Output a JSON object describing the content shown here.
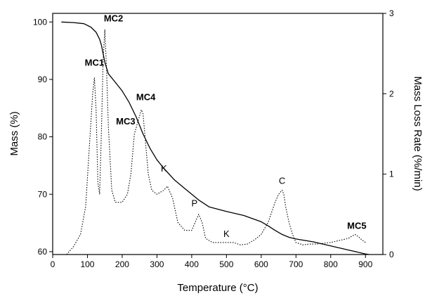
{
  "chart_data": {
    "type": "line",
    "xlabel": "Temperature (°C)",
    "ylabel": "Mass (%)",
    "y2label": "Mass Loss Rate (%/min)",
    "xlim": [
      0,
      950
    ],
    "ylim": [
      59.5,
      101.5
    ],
    "y2lim": [
      0,
      3
    ],
    "xticks": [
      0,
      100,
      200,
      300,
      400,
      500,
      600,
      700,
      800,
      900
    ],
    "yticks": [
      60,
      70,
      80,
      90,
      100
    ],
    "y2ticks": [
      0,
      1,
      2,
      3
    ],
    "grid": false,
    "series": [
      {
        "axis": "left",
        "style": "solid",
        "x": [
          25,
          60,
          90,
          110,
          125,
          135,
          140,
          150,
          160,
          180,
          200,
          220,
          240,
          260,
          280,
          300,
          320,
          350,
          380,
          400,
          420,
          450,
          500,
          550,
          600,
          620,
          640,
          660,
          680,
          700,
          750,
          800,
          850,
          900,
          910
        ],
        "y": [
          100,
          99.9,
          99.7,
          99.1,
          98.2,
          97,
          96,
          93,
          91,
          89.5,
          88,
          86,
          83.5,
          80.5,
          78,
          76,
          74.5,
          72.5,
          71,
          70,
          69,
          67.8,
          67,
          66.3,
          65.2,
          64.5,
          63.7,
          63,
          62.5,
          62.2,
          61.7,
          61,
          60.3,
          59.6,
          59.5
        ]
      },
      {
        "axis": "right",
        "style": "dotted",
        "x": [
          40,
          60,
          80,
          95,
          105,
          115,
          120,
          125,
          130,
          135,
          140,
          145,
          150,
          155,
          160,
          170,
          180,
          200,
          215,
          225,
          235,
          245,
          255,
          260,
          265,
          275,
          285,
          300,
          320,
          330,
          345,
          360,
          380,
          400,
          410,
          420,
          430,
          440,
          460,
          480,
          500,
          520,
          540,
          560,
          580,
          600,
          620,
          640,
          650,
          660,
          665,
          670,
          680,
          690,
          700,
          720,
          740,
          760,
          800,
          850,
          870,
          880,
          890,
          900
        ],
        "y": [
          0,
          0.1,
          0.25,
          0.6,
          1.3,
          2.0,
          2.2,
          1.8,
          0.9,
          0.75,
          1.5,
          2.4,
          2.8,
          2.3,
          1.6,
          0.8,
          0.65,
          0.65,
          0.75,
          1.0,
          1.5,
          1.65,
          1.8,
          1.75,
          1.5,
          1.0,
          0.8,
          0.75,
          0.8,
          0.85,
          0.7,
          0.4,
          0.3,
          0.3,
          0.4,
          0.5,
          0.4,
          0.2,
          0.15,
          0.15,
          0.15,
          0.15,
          0.12,
          0.13,
          0.18,
          0.25,
          0.4,
          0.65,
          0.75,
          0.8,
          0.75,
          0.6,
          0.4,
          0.25,
          0.15,
          0.12,
          0.13,
          0.13,
          0.15,
          0.2,
          0.25,
          0.22,
          0.18,
          0.15
        ]
      }
    ],
    "annotations": [
      {
        "text": "MC1",
        "x": 120,
        "y": 2.35,
        "bold": true
      },
      {
        "text": "MC2",
        "x": 175,
        "y": 2.9,
        "bold": true
      },
      {
        "text": "MC3",
        "x": 210,
        "y": 1.62,
        "bold": true
      },
      {
        "text": "MC4",
        "x": 268,
        "y": 1.92,
        "bold": true
      },
      {
        "text": "K",
        "x": 320,
        "y": 1.03,
        "bold": false
      },
      {
        "text": "P",
        "x": 408,
        "y": 0.6,
        "bold": false
      },
      {
        "text": "K",
        "x": 500,
        "y": 0.22,
        "bold": false
      },
      {
        "text": "C",
        "x": 660,
        "y": 0.88,
        "bold": false
      },
      {
        "text": "MC5",
        "x": 875,
        "y": 0.32,
        "bold": true
      }
    ]
  }
}
